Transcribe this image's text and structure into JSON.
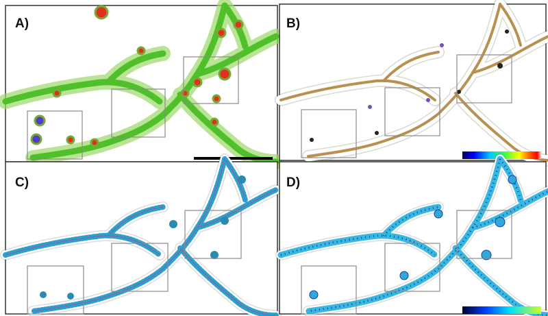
{
  "panels": [
    {
      "label": "A)"
    },
    {
      "label": "B)"
    },
    {
      "label": "C)"
    },
    {
      "label": "D)"
    }
  ]
}
